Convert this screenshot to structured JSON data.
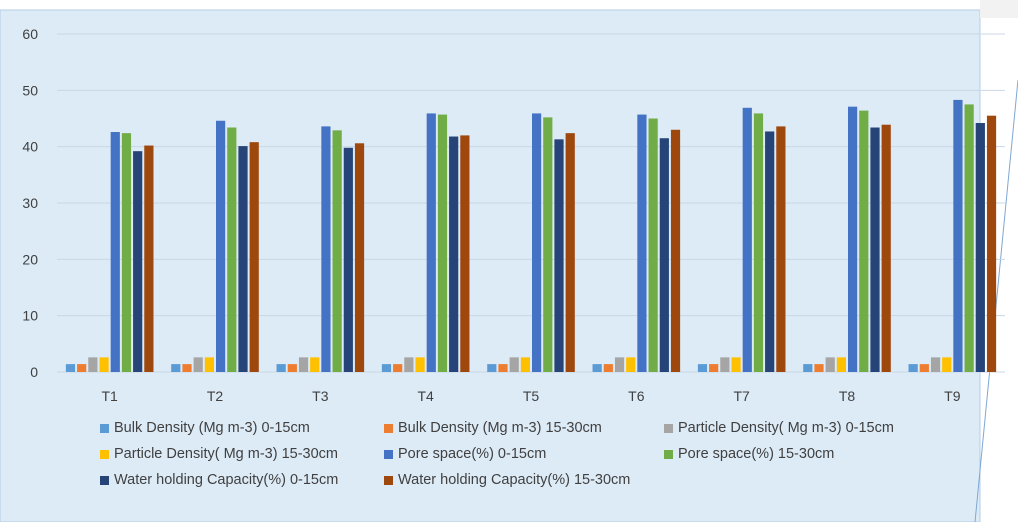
{
  "chart_data": {
    "type": "bar",
    "categories": [
      "T1",
      "T2",
      "T3",
      "T4",
      "T5",
      "T6",
      "T7",
      "T8",
      "T9"
    ],
    "ylim": [
      0,
      60
    ],
    "yticks": [
      0,
      10,
      20,
      30,
      40,
      50,
      60
    ],
    "grid": true,
    "legend_position": "bottom",
    "series": [
      {
        "name": "Bulk Density (Mg m-3) 0-15cm",
        "color": "#5B9BD5",
        "values": [
          1.4,
          1.4,
          1.4,
          1.4,
          1.4,
          1.4,
          1.4,
          1.4,
          1.4
        ]
      },
      {
        "name": "Bulk Density (Mg m-3) 15-30cm",
        "color": "#ED7D31",
        "values": [
          1.4,
          1.4,
          1.4,
          1.4,
          1.4,
          1.4,
          1.4,
          1.4,
          1.4
        ]
      },
      {
        "name": "Particle Density( Mg m-3) 0-15cm",
        "color": "#A5A5A5",
        "values": [
          2.6,
          2.6,
          2.6,
          2.6,
          2.6,
          2.6,
          2.6,
          2.6,
          2.6
        ]
      },
      {
        "name": "Particle Density( Mg m-3) 15-30cm",
        "color": "#FFC000",
        "values": [
          2.6,
          2.6,
          2.6,
          2.6,
          2.6,
          2.6,
          2.6,
          2.6,
          2.6
        ]
      },
      {
        "name": "Pore space(%) 0-15cm",
        "color": "#4472C4",
        "values": [
          42.6,
          44.6,
          43.6,
          45.9,
          45.9,
          45.7,
          46.9,
          47.1,
          48.3
        ]
      },
      {
        "name": "Pore space(%) 15-30cm",
        "color": "#70AD47",
        "values": [
          42.4,
          43.4,
          42.9,
          45.7,
          45.2,
          45.0,
          45.9,
          46.4,
          47.5
        ]
      },
      {
        "name": "Water holding Capacity(%) 0-15cm",
        "color": "#264478",
        "values": [
          39.2,
          40.1,
          39.8,
          41.8,
          41.3,
          41.5,
          42.7,
          43.4,
          44.2
        ]
      },
      {
        "name": "Water holding Capacity(%) 15-30cm",
        "color": "#9E480E",
        "values": [
          40.2,
          40.8,
          40.6,
          42.0,
          42.4,
          43.0,
          43.6,
          43.9,
          45.5
        ]
      }
    ]
  }
}
